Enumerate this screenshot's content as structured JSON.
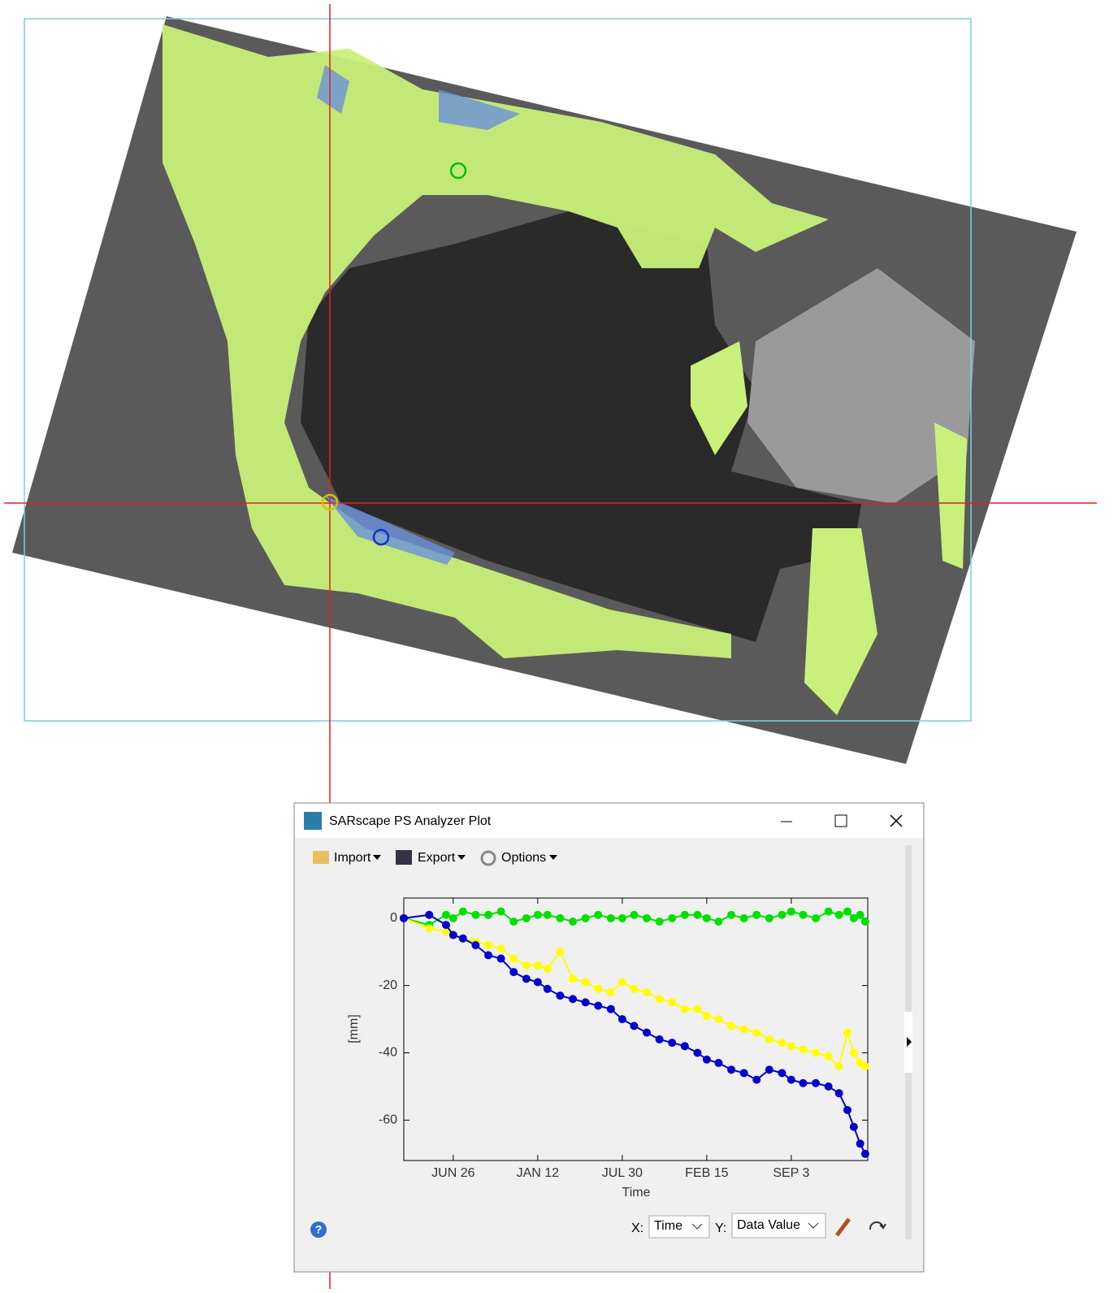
{
  "window": {
    "title": "SARscape PS Analyzer Plot",
    "toolbar": [
      "Import",
      "Export",
      "Options"
    ]
  },
  "controls": {
    "x_label": "X:",
    "x_value": "Time",
    "y_label": "Y:",
    "y_value": "Data Value"
  },
  "chart_data": {
    "type": "line",
    "x_label": "Time",
    "y_label": "[mm]",
    "x": [
      0,
      60,
      100,
      117,
      140,
      170,
      200,
      230,
      260,
      290,
      317,
      340,
      370,
      400,
      430,
      460,
      490,
      517,
      545,
      575,
      605,
      635,
      665,
      695,
      717,
      745,
      775,
      805,
      835,
      865,
      895,
      917,
      945,
      975,
      1005,
      1030,
      1050,
      1065,
      1080,
      1092
    ],
    "xlim": [
      0,
      1098
    ],
    "xticks": [
      {
        "value": 117,
        "label": "JUN 26"
      },
      {
        "value": 317,
        "label": "JAN 12"
      },
      {
        "value": 517,
        "label": "JUL 30"
      },
      {
        "value": 717,
        "label": "FEB 15"
      },
      {
        "value": 917,
        "label": "SEP 3"
      }
    ],
    "ylim": [
      -72,
      6
    ],
    "yticks": [
      0,
      -20,
      -40,
      -60
    ],
    "series": [
      {
        "color": "#00e000",
        "values": [
          0,
          -2,
          1,
          0,
          2,
          1,
          1,
          2,
          -1,
          0,
          1,
          1,
          0,
          -1,
          0,
          1,
          0,
          0,
          1,
          0,
          -1,
          0,
          1,
          1,
          0,
          -1,
          1,
          0,
          1,
          0,
          1,
          2,
          1,
          0,
          2,
          1,
          2,
          0,
          1,
          -1
        ]
      },
      {
        "color": "#ffff00",
        "values": [
          0,
          -3,
          -4,
          -5,
          -6,
          -7,
          -8,
          -9,
          -12,
          -14,
          -14,
          -15,
          -10,
          -18,
          -19,
          -21,
          -22,
          -19,
          -21,
          -22,
          -24,
          -25,
          -27,
          -27,
          -29,
          -30,
          -32,
          -33,
          -34,
          -36,
          -37,
          -38,
          -39,
          -40,
          -41,
          -44,
          -34,
          -40,
          -43,
          -44
        ]
      },
      {
        "color": "#0000cc",
        "values": [
          0,
          1,
          -2,
          -5,
          -6,
          -8,
          -11,
          -12,
          -16,
          -18,
          -19,
          -21,
          -23,
          -24,
          -25,
          -26,
          -27,
          -30,
          -32,
          -34,
          -36,
          -37,
          -38,
          -40,
          -42,
          -43,
          -45,
          -46,
          -48,
          -45,
          -46,
          -48,
          -49,
          -49,
          -50,
          -52,
          -57,
          -62,
          -67,
          -70
        ]
      }
    ]
  }
}
